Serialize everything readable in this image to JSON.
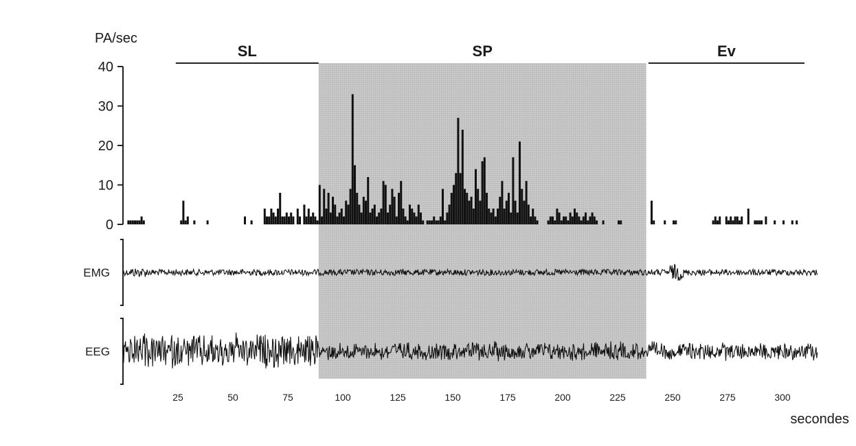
{
  "chart_data": {
    "type": "bar",
    "ylabel": "PA/sec",
    "xlabel": "secondes",
    "ylim": [
      0,
      40
    ],
    "xlim": [
      0,
      315
    ],
    "yticks": [
      "0",
      "10",
      "20",
      "30",
      "40"
    ],
    "xticks": [
      "25",
      "50",
      "75",
      "100",
      "125",
      "150",
      "175",
      "200",
      "225",
      "250",
      "275",
      "300"
    ],
    "phases": [
      {
        "label": "SL",
        "start": 24,
        "end": 89,
        "shaded": false
      },
      {
        "label": "SP",
        "start": 89,
        "end": 238,
        "shaded": true
      },
      {
        "label": "Ev",
        "start": 239,
        "end": 310,
        "shaded": false
      }
    ],
    "traces": [
      {
        "name": "EMG"
      },
      {
        "name": "EEG"
      }
    ],
    "series": [
      {
        "values": [
          [
            2,
            1
          ],
          [
            3,
            1
          ],
          [
            4,
            1
          ],
          [
            5,
            1
          ],
          [
            6,
            1
          ],
          [
            7,
            1
          ],
          [
            8,
            2
          ],
          [
            9,
            1
          ],
          [
            26,
            1
          ],
          [
            27,
            6
          ],
          [
            28,
            1
          ],
          [
            29,
            2
          ],
          [
            32,
            1
          ],
          [
            38,
            1
          ],
          [
            55,
            2
          ],
          [
            58,
            1
          ],
          [
            64,
            4
          ],
          [
            65,
            2
          ],
          [
            66,
            2
          ],
          [
            67,
            4
          ],
          [
            68,
            3
          ],
          [
            69,
            2
          ],
          [
            70,
            4
          ],
          [
            71,
            8
          ],
          [
            72,
            2
          ],
          [
            73,
            2
          ],
          [
            74,
            3
          ],
          [
            75,
            2
          ],
          [
            76,
            3
          ],
          [
            77,
            2
          ],
          [
            79,
            4
          ],
          [
            80,
            2
          ],
          [
            82,
            5
          ],
          [
            83,
            2
          ],
          [
            84,
            4
          ],
          [
            85,
            2
          ],
          [
            86,
            3
          ],
          [
            87,
            2
          ],
          [
            88,
            1
          ],
          [
            89,
            10
          ],
          [
            90,
            2
          ],
          [
            91,
            9
          ],
          [
            92,
            4
          ],
          [
            93,
            8
          ],
          [
            94,
            3
          ],
          [
            95,
            7
          ],
          [
            96,
            5
          ],
          [
            97,
            2
          ],
          [
            98,
            3
          ],
          [
            99,
            4
          ],
          [
            100,
            2
          ],
          [
            101,
            6
          ],
          [
            102,
            5
          ],
          [
            103,
            9
          ],
          [
            104,
            33
          ],
          [
            105,
            15
          ],
          [
            106,
            8
          ],
          [
            107,
            5
          ],
          [
            108,
            3
          ],
          [
            109,
            7
          ],
          [
            110,
            6
          ],
          [
            111,
            12
          ],
          [
            112,
            3
          ],
          [
            113,
            4
          ],
          [
            114,
            5
          ],
          [
            115,
            2
          ],
          [
            116,
            3
          ],
          [
            117,
            4
          ],
          [
            118,
            11
          ],
          [
            119,
            10
          ],
          [
            120,
            3
          ],
          [
            121,
            5
          ],
          [
            122,
            9
          ],
          [
            123,
            7
          ],
          [
            124,
            2
          ],
          [
            125,
            8
          ],
          [
            126,
            11
          ],
          [
            127,
            4
          ],
          [
            128,
            2
          ],
          [
            129,
            1
          ],
          [
            130,
            5
          ],
          [
            131,
            4
          ],
          [
            132,
            3
          ],
          [
            133,
            2
          ],
          [
            134,
            5
          ],
          [
            135,
            3
          ],
          [
            136,
            1
          ],
          [
            138,
            1
          ],
          [
            139,
            1
          ],
          [
            140,
            1
          ],
          [
            141,
            2
          ],
          [
            142,
            1
          ],
          [
            143,
            1
          ],
          [
            144,
            2
          ],
          [
            145,
            9
          ],
          [
            146,
            1
          ],
          [
            147,
            3
          ],
          [
            148,
            5
          ],
          [
            149,
            8
          ],
          [
            150,
            10
          ],
          [
            151,
            13
          ],
          [
            152,
            27
          ],
          [
            153,
            13
          ],
          [
            154,
            24
          ],
          [
            155,
            9
          ],
          [
            156,
            8
          ],
          [
            157,
            6
          ],
          [
            158,
            7
          ],
          [
            159,
            4
          ],
          [
            160,
            14
          ],
          [
            161,
            9
          ],
          [
            162,
            6
          ],
          [
            163,
            16
          ],
          [
            164,
            17
          ],
          [
            165,
            8
          ],
          [
            166,
            4
          ],
          [
            167,
            3
          ],
          [
            168,
            4
          ],
          [
            169,
            2
          ],
          [
            170,
            4
          ],
          [
            171,
            7
          ],
          [
            172,
            11
          ],
          [
            173,
            4
          ],
          [
            174,
            6
          ],
          [
            175,
            8
          ],
          [
            176,
            3
          ],
          [
            177,
            17
          ],
          [
            178,
            6
          ],
          [
            179,
            3
          ],
          [
            180,
            21
          ],
          [
            181,
            9
          ],
          [
            182,
            6
          ],
          [
            183,
            11
          ],
          [
            184,
            5
          ],
          [
            185,
            2
          ],
          [
            186,
            4
          ],
          [
            187,
            2
          ],
          [
            188,
            1
          ],
          [
            193,
            1
          ],
          [
            194,
            2
          ],
          [
            195,
            2
          ],
          [
            196,
            1
          ],
          [
            197,
            4
          ],
          [
            198,
            3
          ],
          [
            199,
            1
          ],
          [
            200,
            2
          ],
          [
            201,
            2
          ],
          [
            202,
            1
          ],
          [
            203,
            3
          ],
          [
            204,
            2
          ],
          [
            205,
            4
          ],
          [
            206,
            3
          ],
          [
            207,
            2
          ],
          [
            208,
            1
          ],
          [
            209,
            2
          ],
          [
            210,
            3
          ],
          [
            211,
            1
          ],
          [
            212,
            2
          ],
          [
            213,
            3
          ],
          [
            214,
            2
          ],
          [
            215,
            1
          ],
          [
            218,
            1
          ],
          [
            225,
            1
          ],
          [
            226,
            1
          ],
          [
            240,
            6
          ],
          [
            241,
            1
          ],
          [
            246,
            1
          ],
          [
            250,
            1
          ],
          [
            251,
            1
          ],
          [
            268,
            1
          ],
          [
            269,
            2
          ],
          [
            270,
            1
          ],
          [
            271,
            2
          ],
          [
            274,
            2
          ],
          [
            275,
            1
          ],
          [
            276,
            2
          ],
          [
            277,
            1
          ],
          [
            278,
            2
          ],
          [
            279,
            2
          ],
          [
            280,
            1
          ],
          [
            281,
            2
          ],
          [
            284,
            4
          ],
          [
            287,
            1
          ],
          [
            288,
            1
          ],
          [
            289,
            1
          ],
          [
            290,
            1
          ],
          [
            292,
            2
          ],
          [
            296,
            1
          ],
          [
            300,
            1
          ],
          [
            304,
            1
          ],
          [
            306,
            1
          ]
        ]
      }
    ]
  }
}
